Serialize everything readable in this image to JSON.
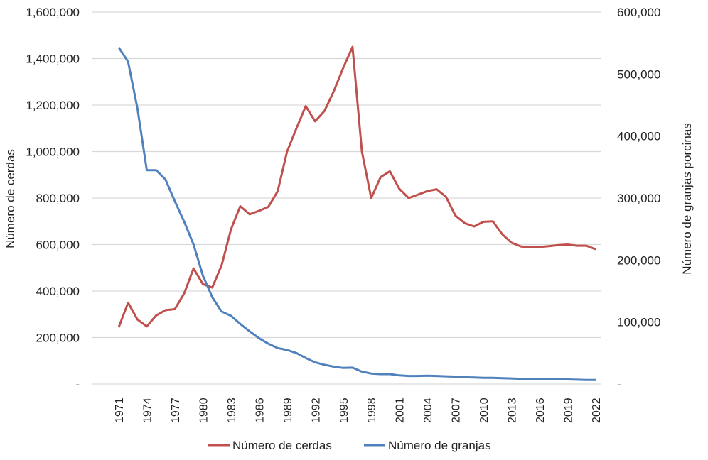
{
  "chart_data": {
    "type": "line",
    "title": "",
    "xlabel": "",
    "ylabel": "Número de cerdas",
    "y2label": "Número de granjas porcinas",
    "ylim": [
      0,
      1600000
    ],
    "y2lim": [
      0,
      600000
    ],
    "yticks": [
      "-",
      "200,000",
      "400,000",
      "600,000",
      "800,000",
      "1,000,000",
      "1,200,000",
      "1,400,000",
      "1,600,000"
    ],
    "y2ticks": [
      "-",
      "100,000",
      "200,000",
      "300,000",
      "400,000",
      "500,000",
      "600,000"
    ],
    "xticks": [
      "1971",
      "1974",
      "1977",
      "1980",
      "1983",
      "1986",
      "1989",
      "1992",
      "1995",
      "1998",
      "2001",
      "2004",
      "2007",
      "2010",
      "2013",
      "2016",
      "2019",
      "2022"
    ],
    "grid": true,
    "legend_position": "bottom",
    "x": [
      1971,
      1972,
      1973,
      1974,
      1975,
      1976,
      1977,
      1978,
      1979,
      1980,
      1981,
      1982,
      1983,
      1984,
      1985,
      1986,
      1987,
      1988,
      1989,
      1990,
      1991,
      1992,
      1993,
      1994,
      1995,
      1996,
      1997,
      1998,
      1999,
      2000,
      2001,
      2002,
      2003,
      2004,
      2005,
      2006,
      2007,
      2008,
      2009,
      2010,
      2011,
      2012,
      2013,
      2014,
      2015,
      2016,
      2017,
      2018,
      2019,
      2020,
      2021,
      2022
    ],
    "series": [
      {
        "name": "Número de cerdas",
        "axis": "left",
        "color": "#c0504d",
        "values": [
          244000,
          350000,
          278000,
          248000,
          295000,
          318000,
          322000,
          390000,
          497000,
          430000,
          415000,
          510000,
          665000,
          765000,
          730000,
          745000,
          762000,
          830000,
          1000000,
          1100000,
          1195000,
          1130000,
          1175000,
          1260000,
          1360000,
          1450000,
          1000000,
          800000,
          890000,
          915000,
          840000,
          800000,
          815000,
          830000,
          838000,
          805000,
          725000,
          692000,
          678000,
          698000,
          700000,
          645000,
          608000,
          592000,
          588000,
          590000,
          593000,
          598000,
          600000,
          595000,
          595000,
          580000
        ]
      },
      {
        "name": "Número de granjas",
        "axis": "right",
        "color": "#4f81bd",
        "values": [
          543000,
          520000,
          445000,
          345000,
          345000,
          330000,
          295000,
          262000,
          225000,
          175000,
          140000,
          117000,
          110000,
          97000,
          85000,
          74000,
          65000,
          58000,
          55000,
          50000,
          42000,
          35000,
          31000,
          28000,
          26000,
          26500,
          20000,
          17000,
          16000,
          16000,
          14000,
          13000,
          13000,
          13500,
          13000,
          12500,
          12000,
          11000,
          10500,
          10000,
          10000,
          9500,
          9000,
          8500,
          8000,
          8000,
          8000,
          7800,
          7500,
          7000,
          6500,
          6500
        ]
      }
    ]
  }
}
